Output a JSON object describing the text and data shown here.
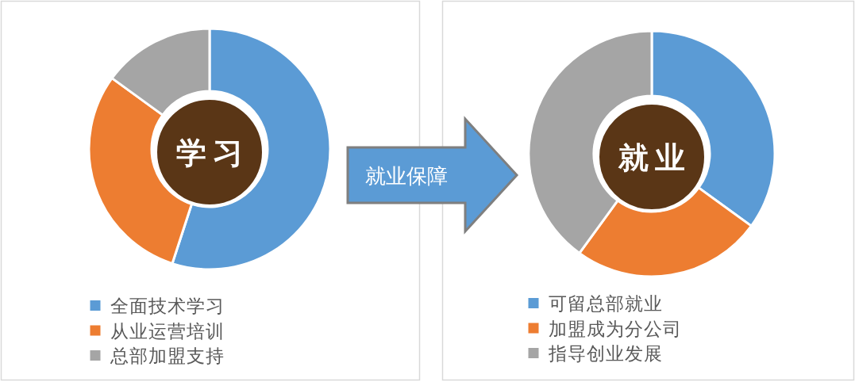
{
  "chart_data": [
    {
      "type": "donut",
      "title": "学习",
      "categories": [
        "全面技术学习",
        "从业运营培训",
        "总部加盟支持"
      ],
      "values": [
        55,
        30,
        15
      ],
      "colors": [
        "#5b9bd5",
        "#ed7d31",
        "#a5a5a5"
      ],
      "legend": "bottom"
    },
    {
      "type": "other",
      "annotations": [
        "就业保障"
      ]
    },
    {
      "type": "donut",
      "title": "就业",
      "categories": [
        "可留总部就业",
        "加盟成为分公司",
        "指导创业发展"
      ],
      "values": [
        35,
        25,
        40
      ],
      "colors": [
        "#5b9bd5",
        "#ed7d31",
        "#a5a5a5"
      ],
      "legend": "bottom"
    }
  ]
}
